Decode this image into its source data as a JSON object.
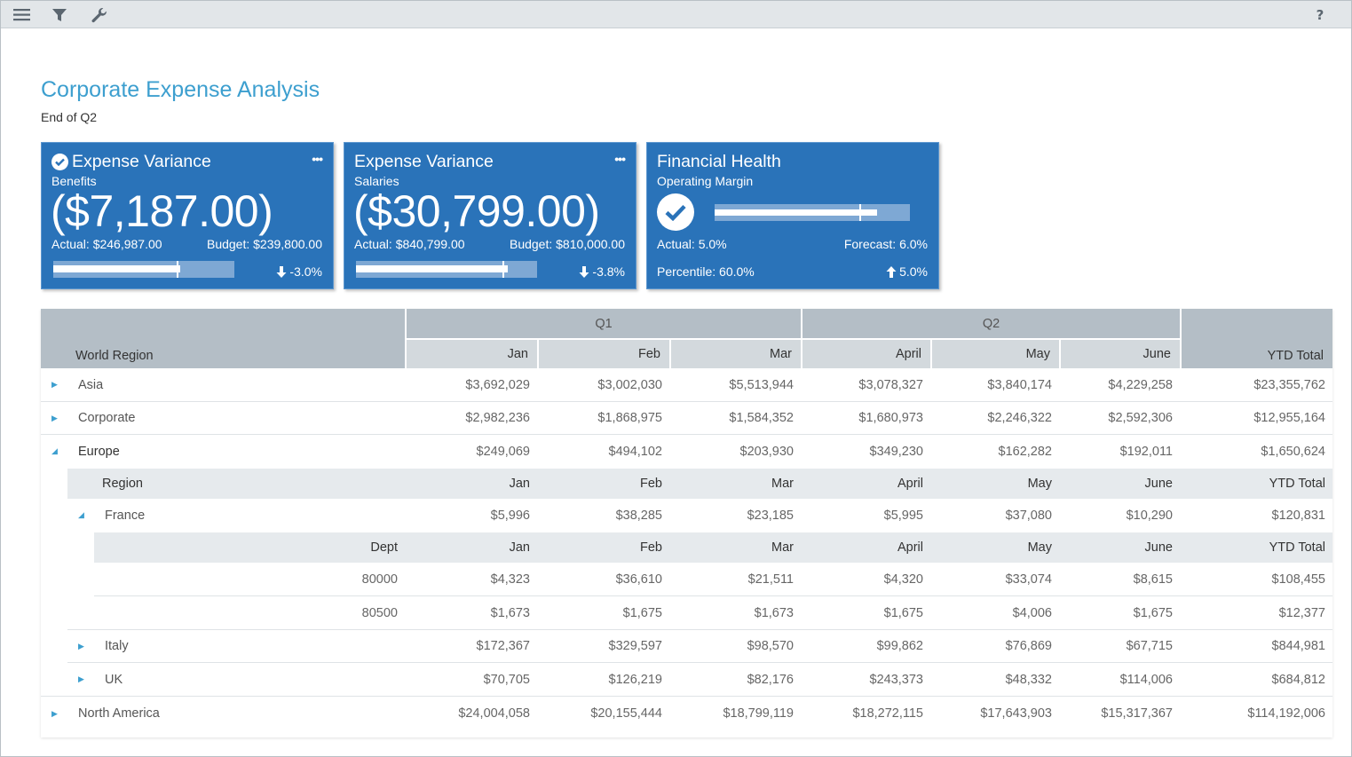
{
  "toolbar": {
    "icons": [
      "menu-icon",
      "filter-icon",
      "wrench-icon"
    ],
    "help_label": "?"
  },
  "page": {
    "title": "Corporate Expense Analysis",
    "subtitle": "End of Q2"
  },
  "kpis": [
    {
      "title": "Expense Variance",
      "subtitle": "Benefits",
      "value": "($7,187.00)",
      "left_label": "Actual: $246,987.00",
      "right_label": "Budget: $239,800.00",
      "delta": "-3.0%",
      "delta_direction": "down",
      "bar_fill_fraction": 0.7,
      "bar_marker_fraction": 0.68
    },
    {
      "title": "Expense Variance",
      "subtitle": "Salaries",
      "value": "($30,799.00)",
      "left_label": "Actual: $840,799.00",
      "right_label": "Budget: $810,000.00",
      "delta": "-3.8%",
      "delta_direction": "down",
      "bar_fill_fraction": 0.84,
      "bar_marker_fraction": 0.81
    },
    {
      "title": "Financial Health",
      "subtitle": "Operating Margin",
      "left_label": "Actual: 5.0%",
      "right_label": "Forecast: 6.0%",
      "bottom_label": "Percentile: 60.0%",
      "delta": "5.0%",
      "delta_direction": "up",
      "bar_fill_fraction": 0.83,
      "bar_marker_fraction": 0.74
    }
  ],
  "table": {
    "headers": {
      "world_region": "World Region",
      "q1": "Q1",
      "q2": "Q2",
      "months": [
        "Jan",
        "Feb",
        "Mar",
        "April",
        "May",
        "June"
      ],
      "ytd": "YTD Total",
      "region": "Region",
      "dept": "Dept"
    },
    "rows": {
      "asia": {
        "label": "Asia",
        "values": [
          "$3,692,029",
          "$3,002,030",
          "$5,513,944",
          "$3,078,327",
          "$3,840,174",
          "$4,229,258",
          "$23,355,762"
        ]
      },
      "corporate": {
        "label": "Corporate",
        "values": [
          "$2,982,236",
          "$1,868,975",
          "$1,584,352",
          "$1,680,973",
          "$2,246,322",
          "$2,592,306",
          "$12,955,164"
        ]
      },
      "europe": {
        "label": "Europe",
        "values": [
          "$249,069",
          "$494,102",
          "$203,930",
          "$349,230",
          "$162,282",
          "$192,011",
          "$1,650,624"
        ]
      },
      "france": {
        "label": "France",
        "values": [
          "$5,996",
          "$38,285",
          "$23,185",
          "$5,995",
          "$37,080",
          "$10,290",
          "$120,831"
        ]
      },
      "dept_80000": {
        "label": "80000",
        "values": [
          "$4,323",
          "$36,610",
          "$21,511",
          "$4,320",
          "$33,074",
          "$8,615",
          "$108,455"
        ]
      },
      "dept_80500": {
        "label": "80500",
        "values": [
          "$1,673",
          "$1,675",
          "$1,673",
          "$1,675",
          "$4,006",
          "$1,675",
          "$12,377"
        ]
      },
      "italy": {
        "label": "Italy",
        "values": [
          "$172,367",
          "$329,597",
          "$98,570",
          "$99,862",
          "$76,869",
          "$67,715",
          "$844,981"
        ]
      },
      "uk": {
        "label": "UK",
        "values": [
          "$70,705",
          "$126,219",
          "$82,176",
          "$243,373",
          "$48,332",
          "$114,006",
          "$684,812"
        ]
      },
      "north_america": {
        "label": "North America",
        "values": [
          "$24,004,058",
          "$20,155,444",
          "$18,799,119",
          "$18,272,115",
          "$17,643,903",
          "$15,317,367",
          "$114,192,006"
        ]
      }
    }
  }
}
